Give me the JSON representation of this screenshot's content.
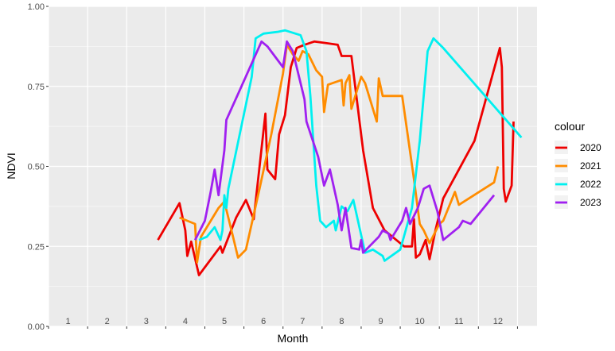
{
  "chart_data": {
    "type": "line",
    "xlabel": "Month",
    "ylabel": "NDVI",
    "ylim": [
      0,
      1
    ],
    "xlim": [
      0.5,
      13.0
    ],
    "y_ticks": [
      "0.00",
      "0.25",
      "0.50",
      "0.75",
      "1.00"
    ],
    "y_tick_values": [
      0,
      0.25,
      0.5,
      0.75,
      1.0
    ],
    "x_ticks": [
      "1",
      "2",
      "3",
      "4",
      "5",
      "6",
      "7",
      "8",
      "9",
      "10",
      "11",
      "12"
    ],
    "grid": true,
    "legend": {
      "title": "colour",
      "placement": "right"
    },
    "series": [
      {
        "name": "2020",
        "color": "#ee0000",
        "points": [
          [
            3.3,
            0.27
          ],
          [
            3.85,
            0.385
          ],
          [
            4.0,
            0.3
          ],
          [
            4.05,
            0.22
          ],
          [
            4.15,
            0.265
          ],
          [
            4.35,
            0.16
          ],
          [
            4.9,
            0.25
          ],
          [
            4.95,
            0.23
          ],
          [
            5.3,
            0.34
          ],
          [
            5.55,
            0.395
          ],
          [
            5.75,
            0.335
          ],
          [
            6.05,
            0.665
          ],
          [
            6.1,
            0.49
          ],
          [
            6.3,
            0.46
          ],
          [
            6.4,
            0.6
          ],
          [
            6.55,
            0.66
          ],
          [
            6.7,
            0.81
          ],
          [
            6.85,
            0.87
          ],
          [
            7.05,
            0.88
          ],
          [
            7.3,
            0.89
          ],
          [
            7.6,
            0.885
          ],
          [
            7.9,
            0.88
          ],
          [
            8.0,
            0.845
          ],
          [
            8.25,
            0.845
          ],
          [
            8.55,
            0.55
          ],
          [
            8.8,
            0.37
          ],
          [
            9.1,
            0.3
          ],
          [
            9.6,
            0.25
          ],
          [
            9.8,
            0.25
          ],
          [
            9.85,
            0.335
          ],
          [
            9.9,
            0.215
          ],
          [
            10.0,
            0.225
          ],
          [
            10.15,
            0.27
          ],
          [
            10.25,
            0.21
          ],
          [
            10.4,
            0.3
          ],
          [
            10.6,
            0.4
          ],
          [
            11.4,
            0.58
          ],
          [
            12.05,
            0.87
          ],
          [
            12.1,
            0.81
          ],
          [
            12.15,
            0.43
          ],
          [
            12.2,
            0.39
          ],
          [
            12.35,
            0.44
          ],
          [
            12.4,
            0.64
          ]
        ]
      },
      {
        "name": "2021",
        "color": "#ff8c00",
        "points": [
          [
            3.85,
            0.34
          ],
          [
            4.25,
            0.32
          ],
          [
            4.3,
            0.2
          ],
          [
            4.4,
            0.28
          ],
          [
            4.85,
            0.37
          ],
          [
            5.0,
            0.39
          ],
          [
            5.2,
            0.29
          ],
          [
            5.35,
            0.215
          ],
          [
            5.55,
            0.24
          ],
          [
            5.9,
            0.43
          ],
          [
            6.2,
            0.6
          ],
          [
            6.5,
            0.79
          ],
          [
            6.6,
            0.88
          ],
          [
            6.75,
            0.85
          ],
          [
            6.9,
            0.83
          ],
          [
            7.0,
            0.86
          ],
          [
            7.15,
            0.85
          ],
          [
            7.35,
            0.8
          ],
          [
            7.5,
            0.78
          ],
          [
            7.55,
            0.67
          ],
          [
            7.65,
            0.755
          ],
          [
            8.0,
            0.77
          ],
          [
            8.05,
            0.69
          ],
          [
            8.1,
            0.76
          ],
          [
            8.2,
            0.785
          ],
          [
            8.25,
            0.68
          ],
          [
            8.4,
            0.74
          ],
          [
            8.5,
            0.78
          ],
          [
            8.6,
            0.76
          ],
          [
            8.9,
            0.64
          ],
          [
            8.95,
            0.775
          ],
          [
            9.05,
            0.72
          ],
          [
            9.55,
            0.72
          ],
          [
            9.85,
            0.46
          ],
          [
            10.0,
            0.32
          ],
          [
            10.1,
            0.3
          ],
          [
            10.25,
            0.26
          ],
          [
            10.5,
            0.32
          ],
          [
            10.6,
            0.33
          ],
          [
            10.9,
            0.42
          ],
          [
            11.0,
            0.38
          ],
          [
            11.9,
            0.45
          ],
          [
            12.0,
            0.5
          ]
        ]
      },
      {
        "name": "2022",
        "color": "#00f0f0",
        "points": [
          [
            4.35,
            0.27
          ],
          [
            4.55,
            0.28
          ],
          [
            4.75,
            0.31
          ],
          [
            4.9,
            0.27
          ],
          [
            4.95,
            0.3
          ],
          [
            5.0,
            0.41
          ],
          [
            5.05,
            0.37
          ],
          [
            5.1,
            0.43
          ],
          [
            5.7,
            0.78
          ],
          [
            5.8,
            0.9
          ],
          [
            6.0,
            0.915
          ],
          [
            6.35,
            0.92
          ],
          [
            6.55,
            0.925
          ],
          [
            6.95,
            0.91
          ],
          [
            7.1,
            0.86
          ],
          [
            7.2,
            0.72
          ],
          [
            7.35,
            0.44
          ],
          [
            7.45,
            0.33
          ],
          [
            7.6,
            0.31
          ],
          [
            7.8,
            0.33
          ],
          [
            7.85,
            0.3
          ],
          [
            8.0,
            0.375
          ],
          [
            8.15,
            0.36
          ],
          [
            8.3,
            0.395
          ],
          [
            8.6,
            0.23
          ],
          [
            8.8,
            0.24
          ],
          [
            9.05,
            0.22
          ],
          [
            9.1,
            0.205
          ],
          [
            9.5,
            0.24
          ],
          [
            9.8,
            0.37
          ],
          [
            10.0,
            0.58
          ],
          [
            10.2,
            0.86
          ],
          [
            10.35,
            0.9
          ],
          [
            10.6,
            0.87
          ],
          [
            12.6,
            0.59
          ]
        ]
      },
      {
        "name": "2023",
        "color": "#a020f0",
        "points": [
          [
            4.25,
            0.27
          ],
          [
            4.5,
            0.33
          ],
          [
            4.65,
            0.42
          ],
          [
            4.75,
            0.49
          ],
          [
            4.85,
            0.41
          ],
          [
            5.0,
            0.55
          ],
          [
            5.05,
            0.645
          ],
          [
            5.4,
            0.74
          ],
          [
            5.95,
            0.89
          ],
          [
            6.1,
            0.875
          ],
          [
            6.5,
            0.81
          ],
          [
            6.6,
            0.89
          ],
          [
            6.75,
            0.86
          ],
          [
            7.05,
            0.71
          ],
          [
            7.1,
            0.64
          ],
          [
            7.4,
            0.53
          ],
          [
            7.55,
            0.44
          ],
          [
            7.7,
            0.49
          ],
          [
            7.9,
            0.38
          ],
          [
            8.0,
            0.3
          ],
          [
            8.1,
            0.37
          ],
          [
            8.25,
            0.245
          ],
          [
            8.45,
            0.24
          ],
          [
            8.5,
            0.27
          ],
          [
            8.55,
            0.23
          ],
          [
            8.95,
            0.28
          ],
          [
            9.05,
            0.3
          ],
          [
            9.2,
            0.29
          ],
          [
            9.25,
            0.27
          ],
          [
            9.55,
            0.33
          ],
          [
            9.65,
            0.37
          ],
          [
            9.75,
            0.32
          ],
          [
            9.95,
            0.37
          ],
          [
            10.1,
            0.43
          ],
          [
            10.25,
            0.44
          ],
          [
            10.45,
            0.36
          ],
          [
            10.6,
            0.27
          ],
          [
            11.0,
            0.31
          ],
          [
            11.1,
            0.33
          ],
          [
            11.3,
            0.32
          ],
          [
            11.5,
            0.35
          ],
          [
            11.9,
            0.41
          ]
        ]
      }
    ]
  }
}
